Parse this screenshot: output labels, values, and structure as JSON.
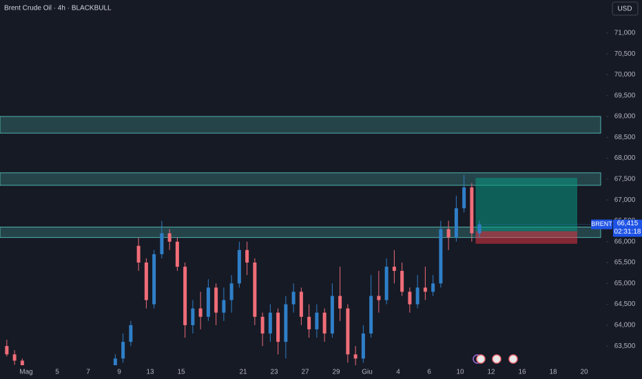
{
  "chart_data": {
    "type": "candlestick",
    "title": "Brent Crude Oil · 4h · BLACKBULL",
    "currency": "USD",
    "symbol": "BRENT",
    "countdown": "02:31:18",
    "last_price": {
      "value": 66415,
      "label": "66,415"
    },
    "up_color": "#2f7fc8",
    "down_color": "#ef6d78",
    "zone_color": "#4fb3ae",
    "categories": [
      null,
      null,
      null,
      "Mag",
      null,
      null,
      null,
      "5",
      null,
      null,
      null,
      "7",
      null,
      null,
      null,
      "9",
      null,
      null,
      null,
      "13",
      null,
      null,
      null,
      "15",
      null,
      null,
      null,
      null,
      null,
      null,
      null,
      "21",
      null,
      null,
      null,
      "23",
      null,
      null,
      null,
      "27",
      null,
      null,
      null,
      "29",
      null,
      null,
      null,
      "Giu",
      null,
      null,
      null,
      "4",
      null,
      null,
      null,
      "6",
      null,
      null,
      null,
      "10",
      null,
      null,
      null,
      "12",
      null,
      null,
      null,
      "16",
      null,
      null,
      null,
      "18",
      null,
      null,
      null,
      "20"
    ],
    "open": [
      63500,
      63300,
      63150,
      null,
      null,
      null,
      null,
      null,
      null,
      null,
      null,
      null,
      null,
      null,
      62900,
      63200,
      63600,
      65900,
      65500,
      64500,
      65700,
      66200,
      66000,
      65400,
      64000,
      64400,
      64200,
      64900,
      64300,
      64600,
      65000,
      65800,
      65500,
      64200,
      63800,
      64300,
      63600,
      64500,
      64800,
      64200,
      63900,
      64300,
      63800,
      64700,
      64400,
      63300,
      63200,
      63800,
      64700,
      64600,
      65400,
      65300,
      64800,
      64500,
      64900,
      64800,
      65000,
      66300,
      66100,
      66800,
      67300,
      66200,
      null,
      null,
      null,
      null,
      null,
      null,
      null,
      null,
      null,
      null,
      null,
      null,
      null,
      null
    ],
    "high": [
      63650,
      63400,
      63200,
      null,
      null,
      null,
      null,
      null,
      null,
      null,
      null,
      null,
      null,
      null,
      63300,
      63800,
      64100,
      66100,
      65600,
      65800,
      66500,
      66300,
      66100,
      65500,
      64600,
      64800,
      65100,
      65000,
      64900,
      65200,
      66000,
      66000,
      65600,
      64300,
      64500,
      64400,
      64700,
      65000,
      64900,
      64500,
      64500,
      64400,
      65000,
      65400,
      64500,
      63500,
      64000,
      65200,
      65300,
      65600,
      65800,
      65500,
      64900,
      65200,
      65400,
      65200,
      66500,
      66500,
      67100,
      67600,
      67400,
      66500,
      null,
      null,
      null,
      null,
      null,
      null,
      null,
      null,
      null,
      null,
      null,
      null,
      null,
      null
    ],
    "low": [
      63250,
      63050,
      62950,
      null,
      null,
      null,
      null,
      null,
      null,
      null,
      null,
      null,
      null,
      null,
      62800,
      63100,
      63500,
      65300,
      64400,
      64400,
      65600,
      65800,
      65300,
      63700,
      63800,
      63900,
      64100,
      64000,
      64100,
      64300,
      64900,
      65200,
      64000,
      63500,
      63600,
      63300,
      63200,
      64300,
      64000,
      63700,
      63700,
      63600,
      63700,
      64100,
      63100,
      63000,
      63100,
      63700,
      64300,
      64500,
      65000,
      64700,
      64300,
      64400,
      64600,
      64700,
      64900,
      65800,
      66000,
      66700,
      66000,
      66100,
      null,
      null,
      null,
      null,
      null,
      null,
      null,
      null,
      null,
      null,
      null,
      null,
      null,
      null
    ],
    "close": [
      63300,
      63150,
      63000,
      null,
      null,
      null,
      null,
      null,
      null,
      null,
      null,
      null,
      null,
      null,
      63200,
      63600,
      64000,
      65500,
      64600,
      65700,
      66200,
      66000,
      65400,
      64000,
      64400,
      64200,
      64900,
      64300,
      64600,
      65000,
      65800,
      65500,
      64200,
      63800,
      64300,
      63600,
      64500,
      64800,
      64200,
      63900,
      64300,
      63800,
      64700,
      64400,
      63300,
      63200,
      63800,
      64700,
      64600,
      65400,
      65300,
      64800,
      64500,
      64900,
      64800,
      65000,
      66300,
      66100,
      66800,
      67300,
      66200,
      66415,
      null,
      null,
      null,
      null,
      null,
      null,
      null,
      null,
      null,
      null,
      null,
      null,
      null,
      null
    ],
    "zones": [
      {
        "top": 69000,
        "bottom": 68600
      },
      {
        "top": 67650,
        "bottom": 67350
      },
      {
        "top": 66350,
        "bottom": 66100
      }
    ],
    "long_position": {
      "target": 67530,
      "entry": 66250,
      "stop": 65950
    },
    "ylim": [
      63040,
      71790
    ],
    "yticks": [
      {
        "value": 63500,
        "label": "63,500"
      },
      {
        "value": 64000,
        "label": "64,000"
      },
      {
        "value": 64500,
        "label": "64,500"
      },
      {
        "value": 65000,
        "label": "65,000"
      },
      {
        "value": 65500,
        "label": "65,500"
      },
      {
        "value": 66000,
        "label": "66,000"
      },
      {
        "value": 66500,
        "label": "66,500"
      },
      {
        "value": 67000,
        "label": "67,000"
      },
      {
        "value": 67500,
        "label": "67,500"
      },
      {
        "value": 68000,
        "label": "68,000"
      },
      {
        "value": 68500,
        "label": "68,500"
      },
      {
        "value": 69000,
        "label": "69,000"
      },
      {
        "value": 69500,
        "label": "69,500"
      },
      {
        "value": 70000,
        "label": "70,000"
      },
      {
        "value": 70500,
        "label": "70,500"
      },
      {
        "value": 71000,
        "label": "71,000"
      }
    ],
    "grid": false
  }
}
